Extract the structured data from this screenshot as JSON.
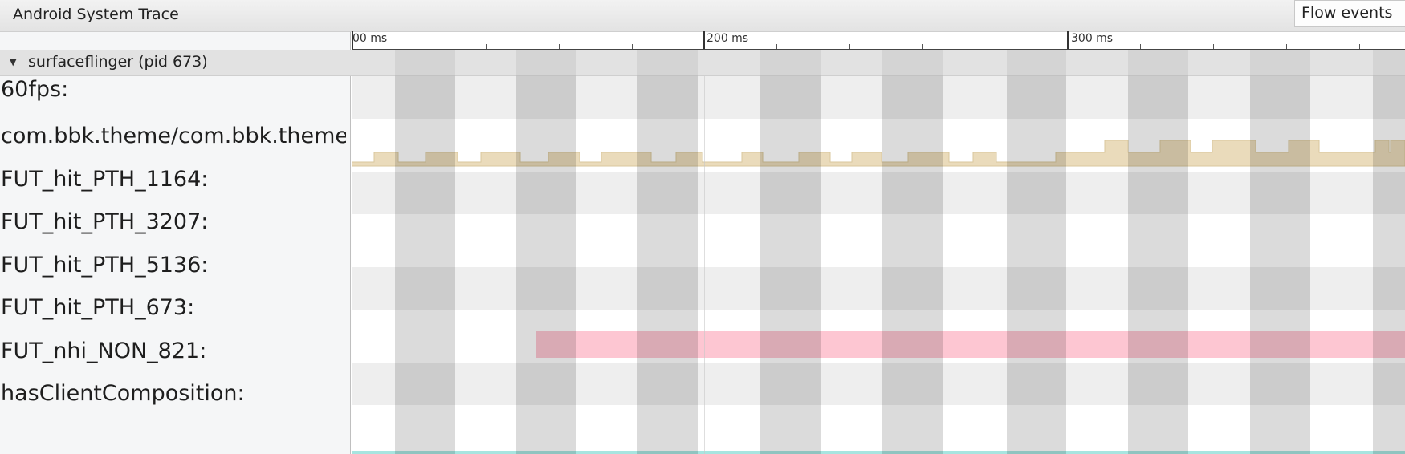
{
  "window": {
    "title": "Android System Trace",
    "flow_events_button": "Flow events"
  },
  "ruler": {
    "labels": [
      "00 ms",
      "200 ms",
      "300 ms"
    ]
  },
  "process": {
    "toggle_icon": "triangle-down-icon",
    "label": "surfaceflinger (pid 673)"
  },
  "tracks": [
    {
      "label": "60fps:"
    },
    {
      "label": "com.bbk.theme/com.bbk.theme"
    },
    {
      "label": "FUT_hit_PTH_1164:"
    },
    {
      "label": "FUT_hit_PTH_3207:"
    },
    {
      "label": "FUT_hit_PTH_5136:"
    },
    {
      "label": "FUT_hit_PTH_673:"
    },
    {
      "label": "FUT_nhi_NON_821:"
    },
    {
      "label": "hasClientComposition:"
    }
  ],
  "colors": {
    "counter_fill": "#eadbbb",
    "slice_pink": "#fdc6d2",
    "slice_teal": "#a7e5e0",
    "row_shaded": "#eeeeee",
    "row_plain": "#ffffff"
  }
}
